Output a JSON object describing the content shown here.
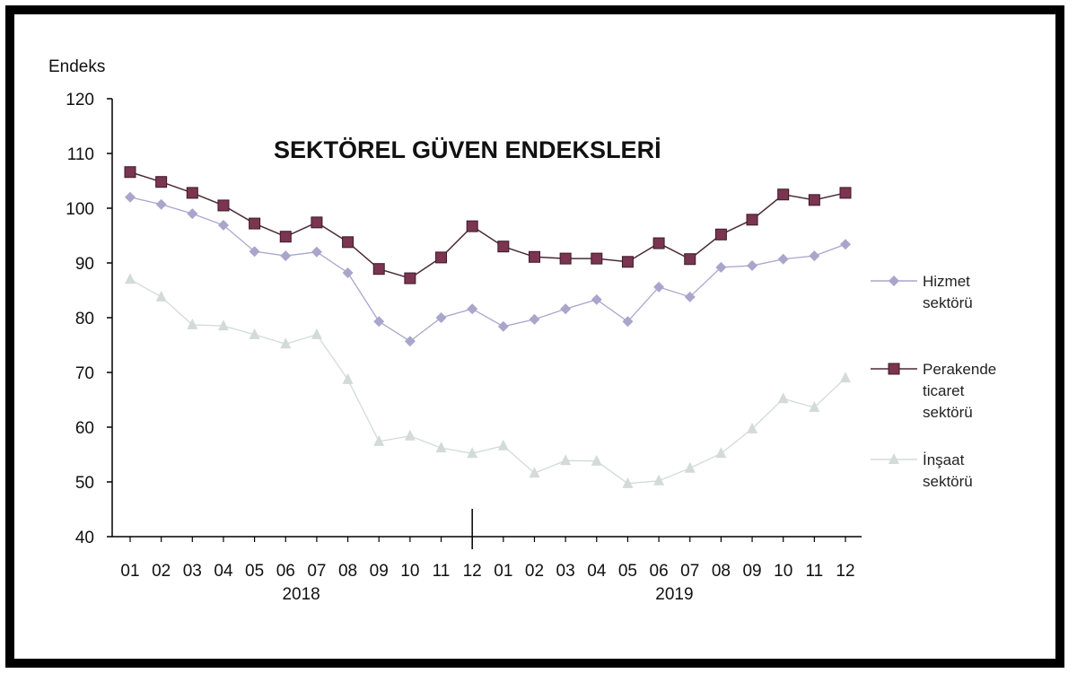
{
  "chart_data": {
    "type": "line",
    "title": "SEKTÖREL GÜVEN ENDEKSLERİ",
    "ylabel": "Endeks",
    "xlabel": "",
    "ylim": [
      40,
      120
    ],
    "yticks": [
      40,
      50,
      60,
      70,
      80,
      90,
      100,
      110,
      120
    ],
    "categories": [
      "01",
      "02",
      "03",
      "04",
      "05",
      "06",
      "07",
      "08",
      "09",
      "10",
      "11",
      "12",
      "01",
      "02",
      "03",
      "04",
      "05",
      "06",
      "07",
      "08",
      "09",
      "10",
      "11",
      "12"
    ],
    "year_labels": [
      "2018",
      "2019"
    ],
    "grid": false,
    "legend_position": "right",
    "series": [
      {
        "name": "Hizmet sektörü",
        "color": "#a9a6cc",
        "marker": "diamond",
        "values": [
          102.0,
          100.7,
          99.0,
          96.9,
          92.1,
          91.3,
          92.0,
          88.2,
          79.3,
          75.7,
          80.0,
          81.6,
          78.4,
          79.7,
          81.6,
          83.3,
          79.3,
          85.6,
          83.8,
          89.2,
          89.5,
          90.7,
          91.3,
          93.4
        ]
      },
      {
        "name": "Perakende ticaret sektörü",
        "color": "#7b3550",
        "marker": "square",
        "values": [
          106.6,
          104.8,
          102.8,
          100.5,
          97.2,
          94.8,
          97.4,
          93.8,
          88.9,
          87.2,
          91.0,
          96.7,
          93.0,
          91.1,
          90.8,
          90.8,
          90.2,
          93.6,
          90.7,
          95.2,
          97.9,
          102.5,
          101.5,
          102.8
        ]
      },
      {
        "name": "İnşaat sektörü",
        "color": "#d3dada",
        "marker": "triangle",
        "values": [
          87.0,
          83.8,
          78.7,
          78.5,
          76.9,
          75.2,
          76.9,
          68.7,
          57.4,
          58.4,
          56.2,
          55.2,
          56.6,
          51.6,
          53.9,
          53.8,
          49.7,
          50.2,
          52.5,
          55.2,
          59.7,
          65.2,
          63.6,
          69.0
        ]
      }
    ],
    "legend": [
      {
        "lines": [
          "Hizmet",
          "sektörü"
        ]
      },
      {
        "lines": [
          "Perakende",
          "ticaret",
          "sektörü"
        ]
      },
      {
        "lines": [
          "İnşaat",
          "sektörü"
        ]
      }
    ]
  }
}
